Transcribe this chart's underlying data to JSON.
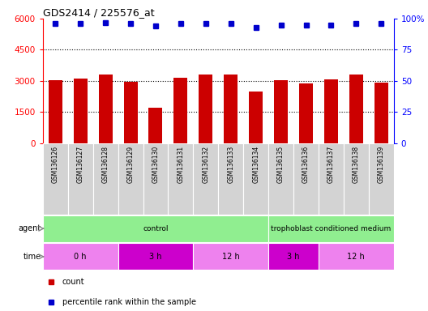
{
  "title": "GDS2414 / 225576_at",
  "samples": [
    "GSM136126",
    "GSM136127",
    "GSM136128",
    "GSM136129",
    "GSM136130",
    "GSM136131",
    "GSM136132",
    "GSM136133",
    "GSM136134",
    "GSM136135",
    "GSM136136",
    "GSM136137",
    "GSM136138",
    "GSM136139"
  ],
  "counts": [
    3020,
    3100,
    3300,
    2960,
    1700,
    3150,
    3320,
    3320,
    2480,
    3030,
    2870,
    3070,
    3320,
    2900
  ],
  "percentile_ranks": [
    96,
    96,
    97,
    96,
    94,
    96,
    96,
    96,
    93,
    95,
    95,
    95,
    96,
    96
  ],
  "bar_color": "#cc0000",
  "dot_color": "#0000cc",
  "ylim_left": [
    0,
    6000
  ],
  "ylim_right": [
    0,
    100
  ],
  "yticks_left": [
    0,
    1500,
    3000,
    4500,
    6000
  ],
  "yticks_right": [
    0,
    25,
    50,
    75,
    100
  ],
  "agent_row_color": "#90ee90",
  "time_row_color_light": "#ee82ee",
  "time_row_color_dark": "#cc00cc",
  "tick_area_bg": "#d3d3d3",
  "legend_count_color": "#cc0000",
  "legend_dot_color": "#0000cc",
  "agent_groups": [
    {
      "label": "control",
      "start": 0,
      "end": 9
    },
    {
      "label": "trophoblast conditioned medium",
      "start": 9,
      "end": 14
    }
  ],
  "time_groups": [
    {
      "label": "0 h",
      "start": 0,
      "end": 3,
      "dark": false
    },
    {
      "label": "3 h",
      "start": 3,
      "end": 6,
      "dark": true
    },
    {
      "label": "12 h",
      "start": 6,
      "end": 9,
      "dark": false
    },
    {
      "label": "3 h",
      "start": 9,
      "end": 11,
      "dark": true
    },
    {
      "label": "12 h",
      "start": 11,
      "end": 14,
      "dark": false
    }
  ]
}
